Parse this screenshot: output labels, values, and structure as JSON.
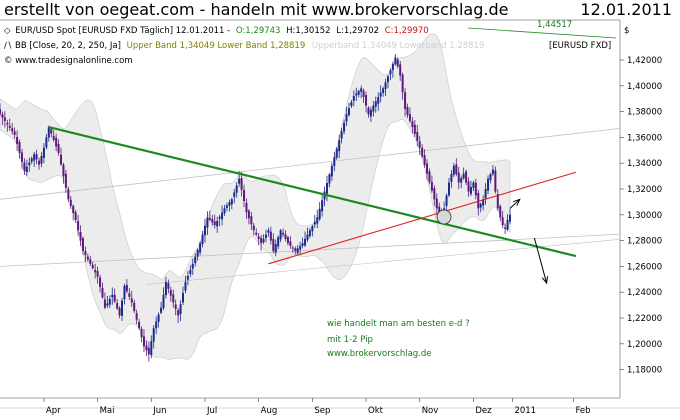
{
  "header": {
    "title": "erstellt von oegeat.com - handeln mit www.brokervorschlag.de",
    "date": "12.01.2011"
  },
  "legend": {
    "line1_symbol": "◇",
    "line1_instrument": "EUR/USD Spot [EURUSD FXD  Täglich] 12.01.2011 -",
    "line1_open": "O:1,29743",
    "line1_high": "H:1,30152",
    "line1_low": "L:1,29702",
    "line1_close": "C:1,29970",
    "line2_symbol": "∕∖",
    "line2_bb": "BB [Close, 20, 2, 250, Ja]",
    "line2_bands": "Upper Band 1,34049 Lower Band 1,28819",
    "line2_faded": "Upperband 1,34049 Lowerband 1,28819",
    "line3": "© www.tradesignalonline.com",
    "right_instrument": "[EURUSD FXD]",
    "axis_currency": "$",
    "callout": "1,44517"
  },
  "annotation": {
    "line1": "wie handelt man am besten e-d ?",
    "line2": "mit 1-2 Pip",
    "line3": "www.brokervorschlag.de"
  },
  "colors": {
    "candle": "#5a1a7a",
    "candle_alt": "#1a2a8a",
    "band_fill": "#ececec",
    "band_line": "#c8c8c8",
    "trend_green": "#1e8a1e",
    "trend_red": "#e02020",
    "gray_line": "#c0c0c0",
    "annotation_text": "#1a7a1a",
    "close_red": "#d01010",
    "open_green": "#1a8a1a",
    "band_olive": "#808000"
  },
  "chart_data": {
    "type": "candlestick",
    "instrument": "EUR/USD",
    "ylim": [
      1.17,
      1.43
    ],
    "yticks": [
      "1,42000",
      "1,40000",
      "1,38000",
      "1,36000",
      "1,34000",
      "1,32000",
      "1,30000",
      "1,28000",
      "1,26000",
      "1,24000",
      "1,22000",
      "1,20000",
      "1,18000"
    ],
    "xticks": [
      "Apr",
      "Mai",
      "Jun",
      "Jul",
      "Aug",
      "Sep",
      "Okt",
      "Nov",
      "Dez",
      "2011",
      "Feb"
    ],
    "month_index": [
      18,
      40,
      62,
      84,
      106,
      128,
      150,
      172,
      194,
      210,
      235
    ],
    "n_candles": 210,
    "close_path": [
      [
        0,
        1.378
      ],
      [
        6,
        1.362
      ],
      [
        10,
        1.334
      ],
      [
        14,
        1.347
      ],
      [
        16,
        1.339
      ],
      [
        18,
        1.352
      ],
      [
        20,
        1.368
      ],
      [
        24,
        1.348
      ],
      [
        28,
        1.312
      ],
      [
        31,
        1.296
      ],
      [
        34,
        1.272
      ],
      [
        37,
        1.262
      ],
      [
        40,
        1.252
      ],
      [
        43,
        1.228
      ],
      [
        46,
        1.238
      ],
      [
        49,
        1.222
      ],
      [
        51,
        1.245
      ],
      [
        54,
        1.232
      ],
      [
        57,
        1.212
      ],
      [
        59,
        1.198
      ],
      [
        61,
        1.192
      ],
      [
        63,
        1.212
      ],
      [
        66,
        1.228
      ],
      [
        68,
        1.248
      ],
      [
        71,
        1.232
      ],
      [
        73,
        1.222
      ],
      [
        76,
        1.248
      ],
      [
        79,
        1.262
      ],
      [
        82,
        1.278
      ],
      [
        85,
        1.298
      ],
      [
        88,
        1.292
      ],
      [
        92,
        1.305
      ],
      [
        95,
        1.312
      ],
      [
        98,
        1.328
      ],
      [
        101,
        1.302
      ],
      [
        104,
        1.288
      ],
      [
        107,
        1.278
      ],
      [
        110,
        1.288
      ],
      [
        112,
        1.272
      ],
      [
        115,
        1.288
      ],
      [
        118,
        1.278
      ],
      [
        121,
        1.272
      ],
      [
        124,
        1.278
      ],
      [
        127,
        1.288
      ],
      [
        130,
        1.298
      ],
      [
        133,
        1.318
      ],
      [
        136,
        1.338
      ],
      [
        139,
        1.358
      ],
      [
        142,
        1.378
      ],
      [
        145,
        1.392
      ],
      [
        148,
        1.398
      ],
      [
        151,
        1.378
      ],
      [
        154,
        1.388
      ],
      [
        157,
        1.398
      ],
      [
        160,
        1.412
      ],
      [
        162,
        1.422
      ],
      [
        164,
        1.408
      ],
      [
        166,
        1.382
      ],
      [
        169,
        1.368
      ],
      [
        172,
        1.352
      ],
      [
        175,
        1.332
      ],
      [
        178,
        1.312
      ],
      [
        180,
        1.298
      ],
      [
        182,
        1.305
      ],
      [
        184,
        1.325
      ],
      [
        186,
        1.338
      ],
      [
        188,
        1.325
      ],
      [
        190,
        1.332
      ],
      [
        192,
        1.318
      ],
      [
        194,
        1.325
      ],
      [
        196,
        1.305
      ],
      [
        198,
        1.312
      ],
      [
        200,
        1.328
      ],
      [
        202,
        1.335
      ],
      [
        203,
        1.318
      ],
      [
        204,
        1.305
      ],
      [
        205,
        1.298
      ],
      [
        206,
        1.292
      ],
      [
        207,
        1.289
      ],
      [
        208,
        1.296
      ],
      [
        209,
        1.3
      ]
    ],
    "upper_band_last": 1.34049,
    "lower_band_last": 1.28819,
    "trendlines": [
      {
        "color": "green",
        "from": [
          20,
          1.368
        ],
        "to": [
          236,
          1.268
        ]
      },
      {
        "color": "red",
        "from": [
          110,
          1.262
        ],
        "to": [
          236,
          1.333
        ]
      }
    ],
    "arrows": [
      {
        "from": [
          209,
          1.305
        ],
        "to": [
          213,
          1.312
        ]
      },
      {
        "from": [
          219,
          1.282
        ],
        "to": [
          224,
          1.247
        ]
      }
    ]
  }
}
